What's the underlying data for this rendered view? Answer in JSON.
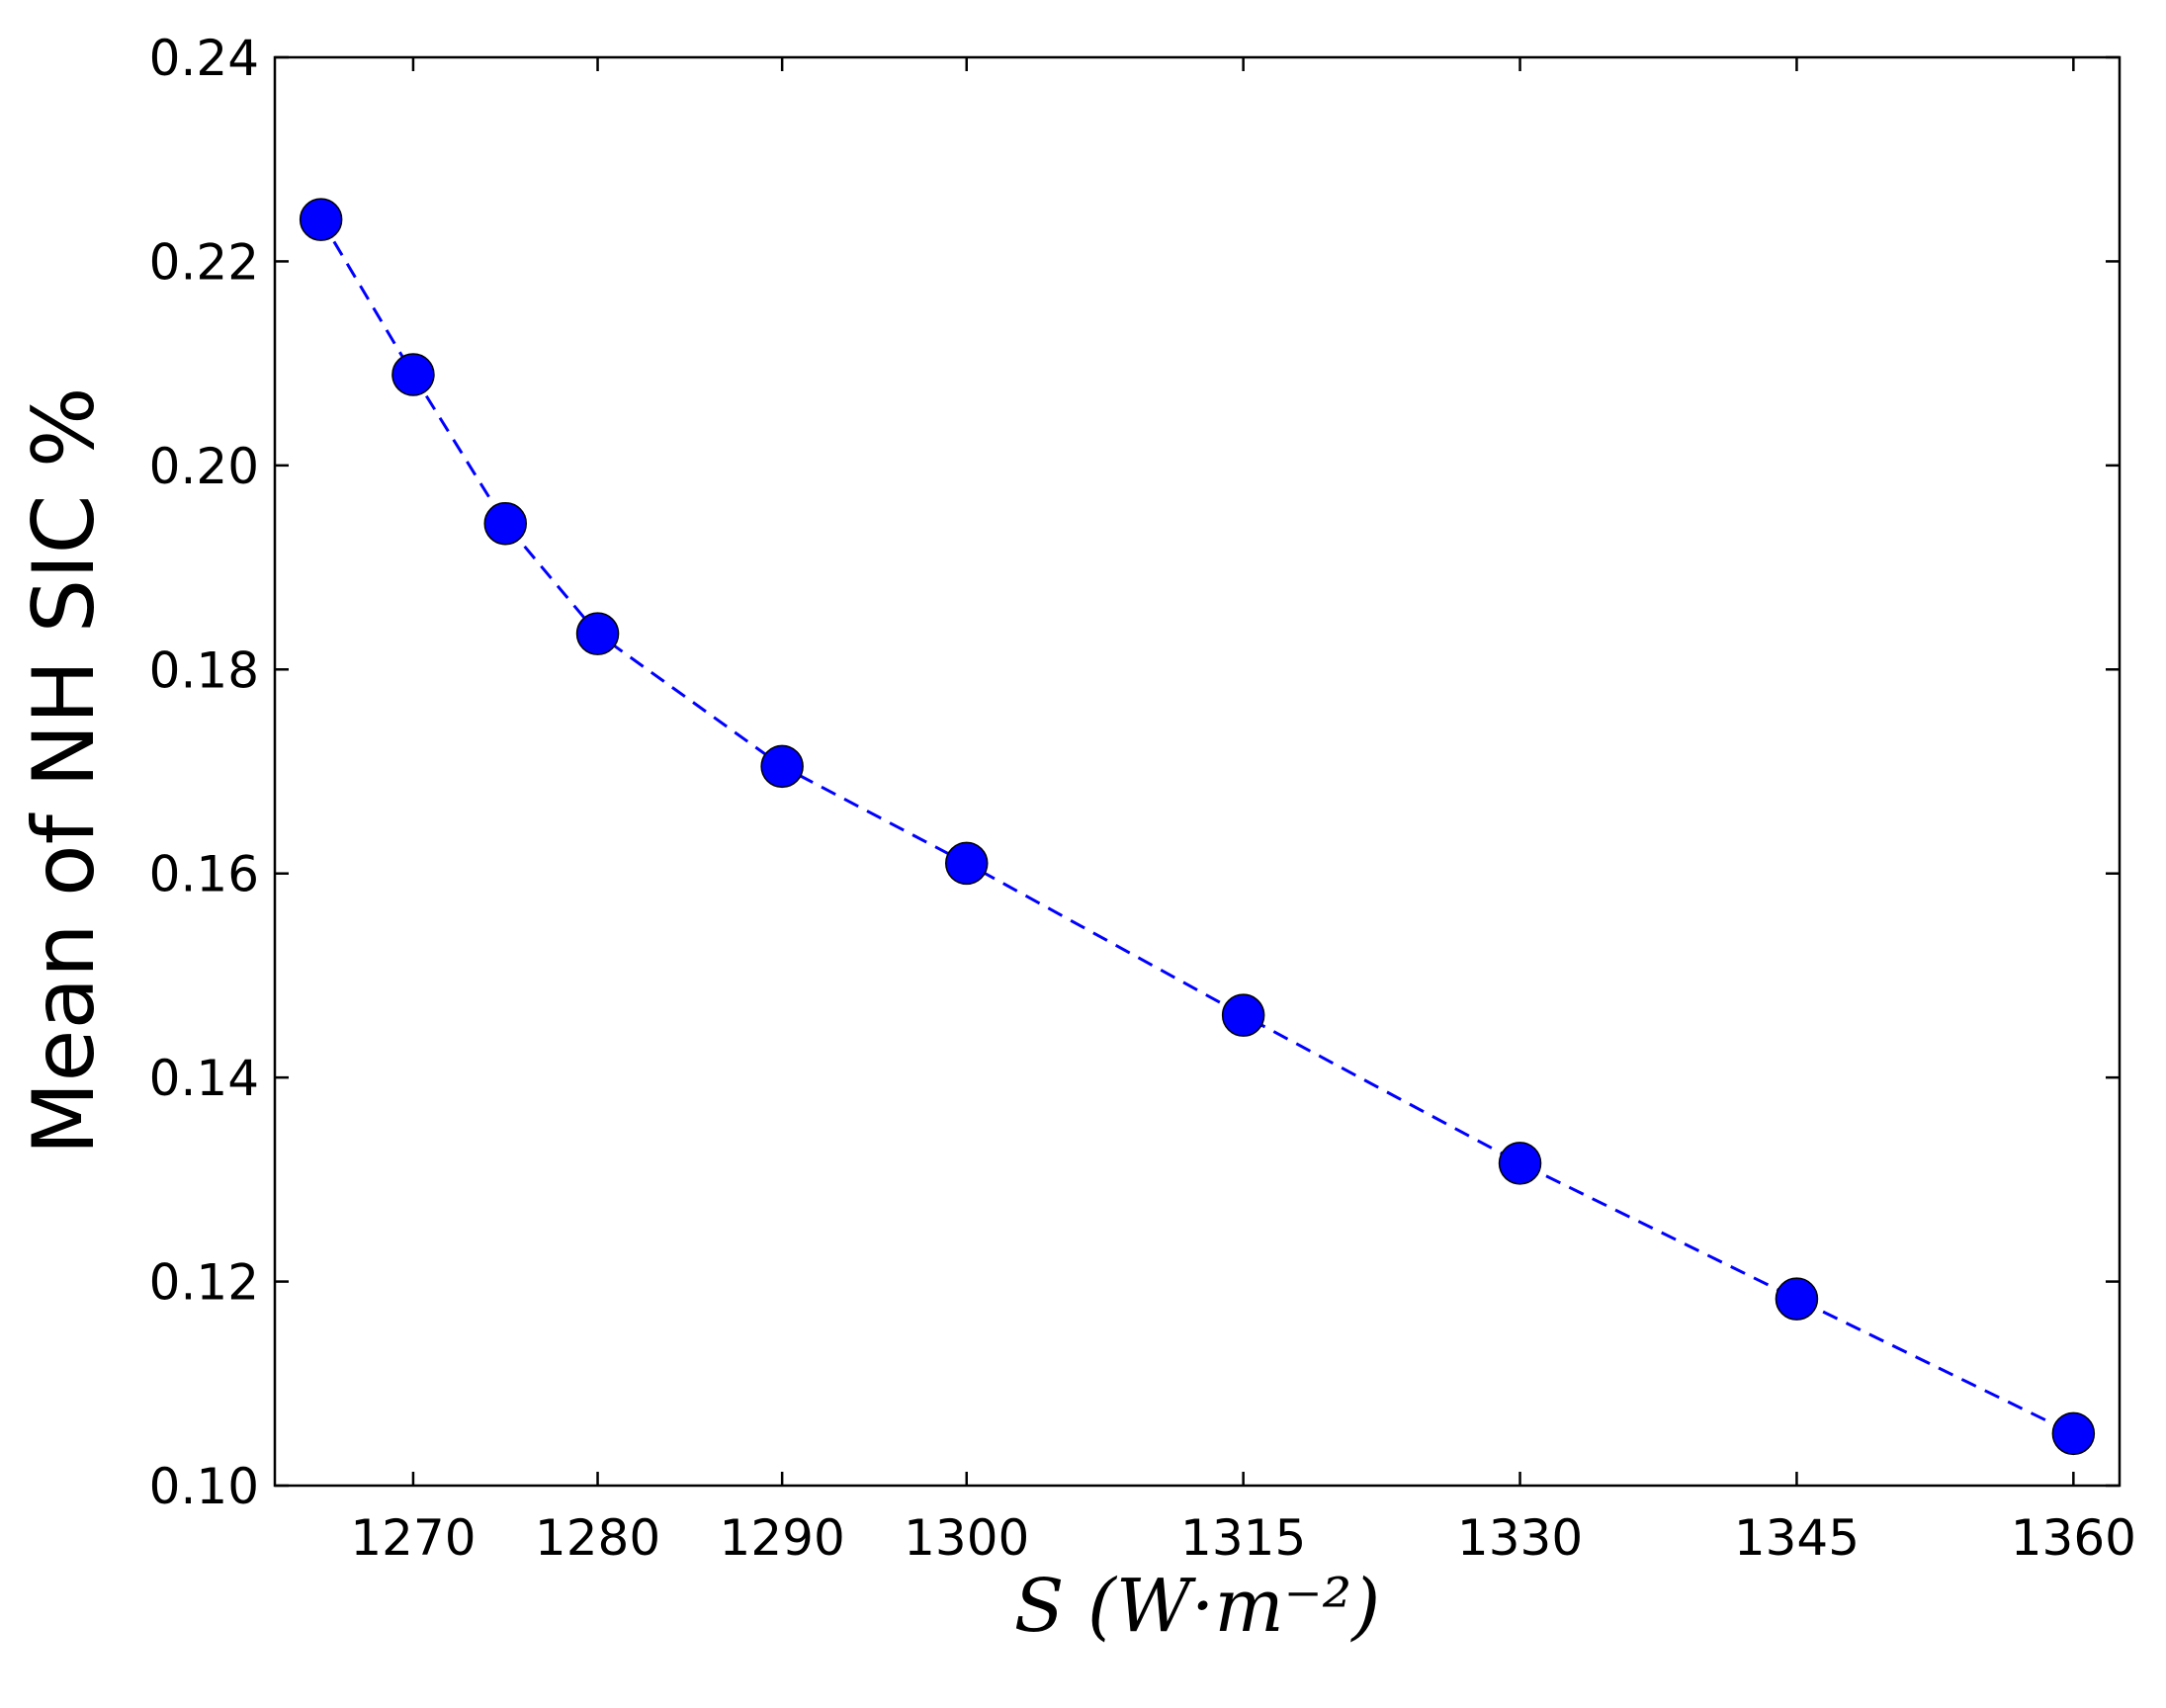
{
  "chart_data": {
    "type": "line",
    "x_ticks": [
      1270,
      1280,
      1290,
      1300,
      1315,
      1330,
      1345,
      1360
    ],
    "y_ticks": [
      "0.10",
      "0.12",
      "0.14",
      "0.16",
      "0.18",
      "0.20",
      "0.22",
      "0.24"
    ],
    "xlim": [
      1262.5,
      1362.5
    ],
    "ylim": [
      0.1,
      0.24
    ],
    "xlabel": "S (W·m⁻²)",
    "ylabel": "Mean of NH SIC %",
    "title": "",
    "grid": false,
    "legend": "none",
    "series": [
      {
        "x": [
          1265,
          1270,
          1275,
          1280,
          1290,
          1300,
          1315,
          1330,
          1345,
          1360
        ],
        "y": [
          0.2241,
          0.2089,
          0.1943,
          0.1835,
          0.1705,
          0.161,
          0.1461,
          0.1316,
          0.1183,
          0.1051
        ],
        "line_style": "dashed",
        "line_color": "#0000ff",
        "marker": "circle",
        "marker_color": "#0000ff"
      }
    ]
  }
}
